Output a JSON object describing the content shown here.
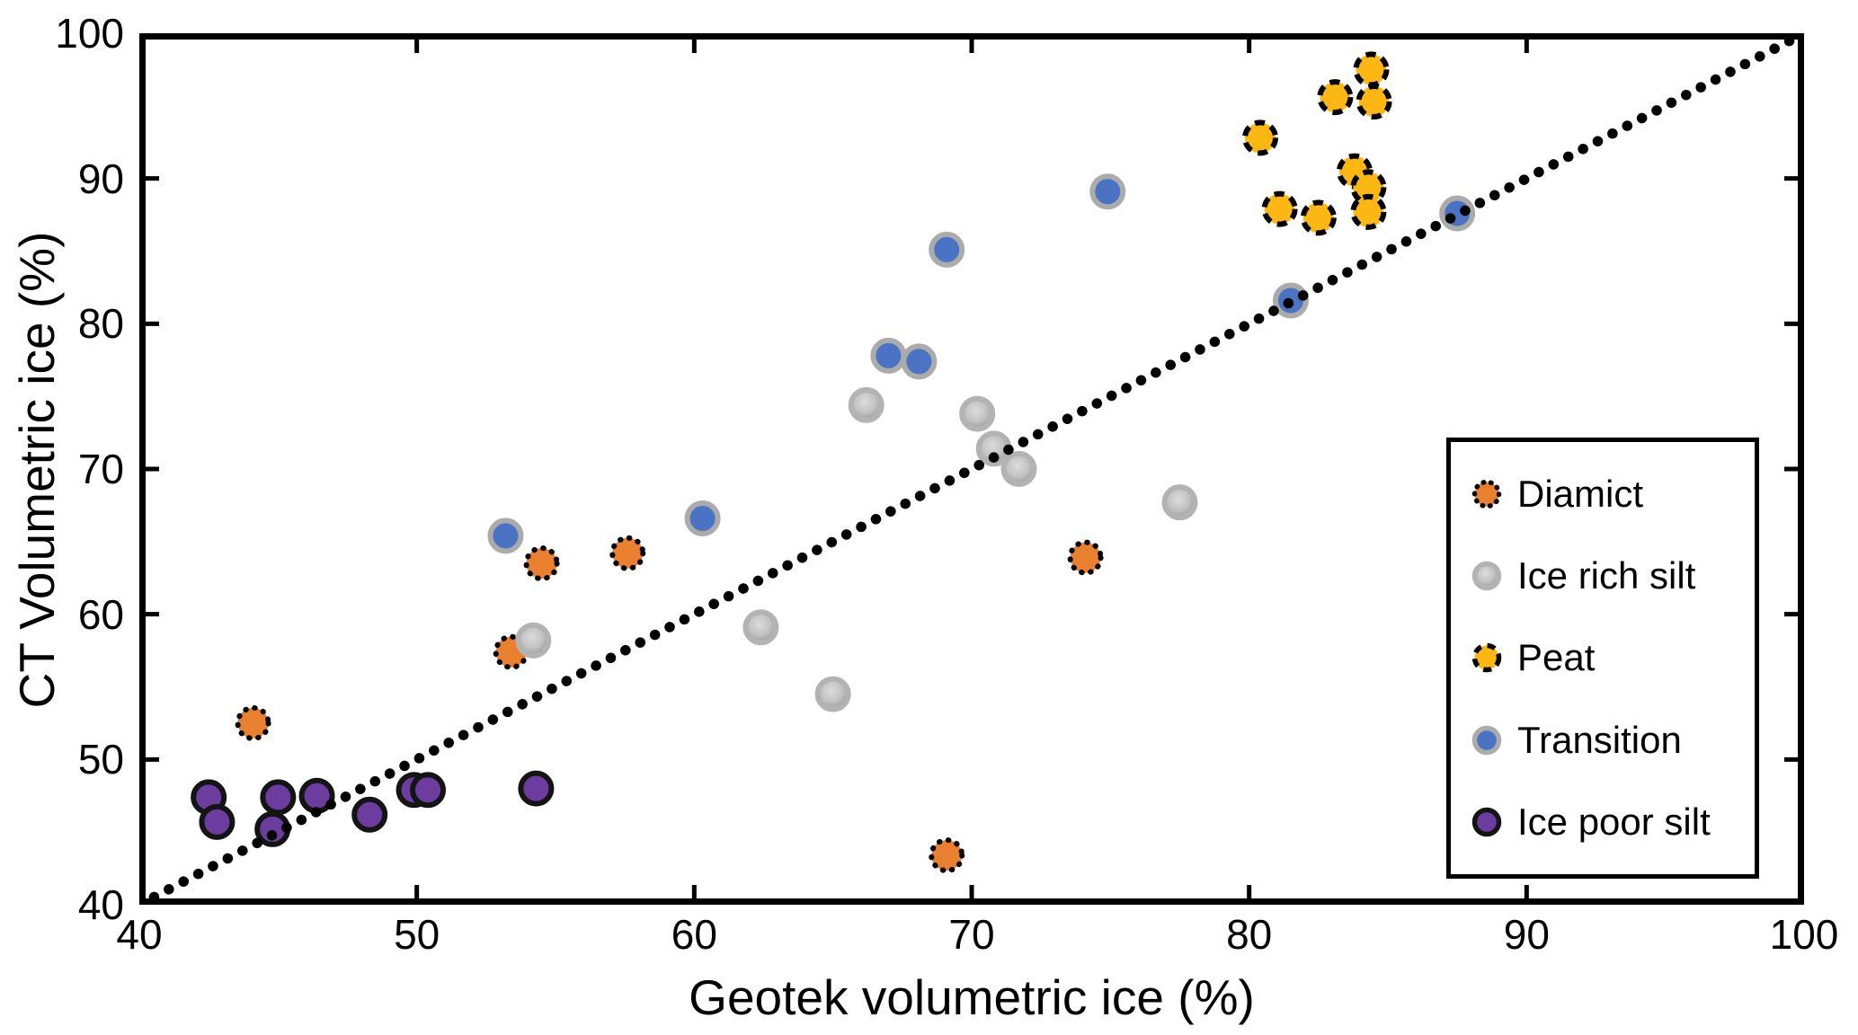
{
  "chart_data": {
    "type": "scatter",
    "title": "",
    "xlabel": "Geotek volumetric ice (%)",
    "ylabel": "CT Volumetric ice (%)",
    "xlim": [
      40,
      100
    ],
    "ylim": [
      40,
      100
    ],
    "x_ticks": [
      40,
      50,
      60,
      70,
      80,
      90,
      100
    ],
    "y_ticks": [
      40,
      50,
      60,
      70,
      80,
      90,
      100
    ],
    "grid": false,
    "frame": "box with inward ticks on all four sides",
    "legend_position": "lower right",
    "identity_line": {
      "style": "dotted",
      "color": "#000000",
      "from": [
        40,
        40
      ],
      "to": [
        100,
        100
      ],
      "meaning": "1:1 line"
    },
    "series": [
      {
        "name": "Diamict",
        "marker": {
          "fill": "#E8802F",
          "stroke": "#000000",
          "stroke_style": "dotted"
        },
        "points": [
          [
            44.1,
            52.5
          ],
          [
            53.4,
            57.4
          ],
          [
            54.5,
            63.5
          ],
          [
            57.6,
            64.2
          ],
          [
            69.1,
            43.4
          ],
          [
            74.1,
            63.9
          ]
        ]
      },
      {
        "name": "Ice rich silt",
        "marker": {
          "fill": "#BDBDBD",
          "stroke": "#B3B3B3",
          "stroke_style": "solid",
          "texture": "speckled-gradient"
        },
        "points": [
          [
            54.2,
            58.2
          ],
          [
            62.4,
            59.1
          ],
          [
            65.0,
            54.5
          ],
          [
            66.2,
            74.4
          ],
          [
            70.2,
            73.8
          ],
          [
            70.8,
            71.4
          ],
          [
            71.7,
            70.0
          ],
          [
            77.5,
            67.7
          ]
        ]
      },
      {
        "name": "Peat",
        "marker": {
          "fill": "#FDB713",
          "stroke": "#000000",
          "stroke_style": "dashed"
        },
        "points": [
          [
            80.4,
            92.8
          ],
          [
            81.1,
            87.9
          ],
          [
            82.5,
            87.3
          ],
          [
            83.1,
            95.6
          ],
          [
            83.8,
            90.5
          ],
          [
            84.3,
            89.4
          ],
          [
            84.3,
            87.7
          ],
          [
            84.4,
            97.5
          ],
          [
            84.5,
            95.3
          ]
        ]
      },
      {
        "name": "Transition",
        "marker": {
          "fill": "#4B73C4",
          "stroke": "#ABABAB",
          "stroke_style": "solid"
        },
        "points": [
          [
            53.2,
            65.4
          ],
          [
            60.3,
            66.6
          ],
          [
            67.0,
            77.8
          ],
          [
            68.1,
            77.4
          ],
          [
            69.1,
            85.1
          ],
          [
            74.9,
            89.1
          ],
          [
            81.5,
            81.6
          ],
          [
            87.5,
            87.6
          ]
        ]
      },
      {
        "name": "Ice poor silt",
        "marker": {
          "fill": "#6C3D9E",
          "stroke": "#141414",
          "stroke_style": "solid"
        },
        "points": [
          [
            42.5,
            47.4
          ],
          [
            42.8,
            45.7
          ],
          [
            44.8,
            45.2
          ],
          [
            45.0,
            47.4
          ],
          [
            46.4,
            47.5
          ],
          [
            48.3,
            46.2
          ],
          [
            49.9,
            47.9
          ],
          [
            50.4,
            47.9
          ],
          [
            54.3,
            48.0
          ]
        ]
      }
    ]
  }
}
